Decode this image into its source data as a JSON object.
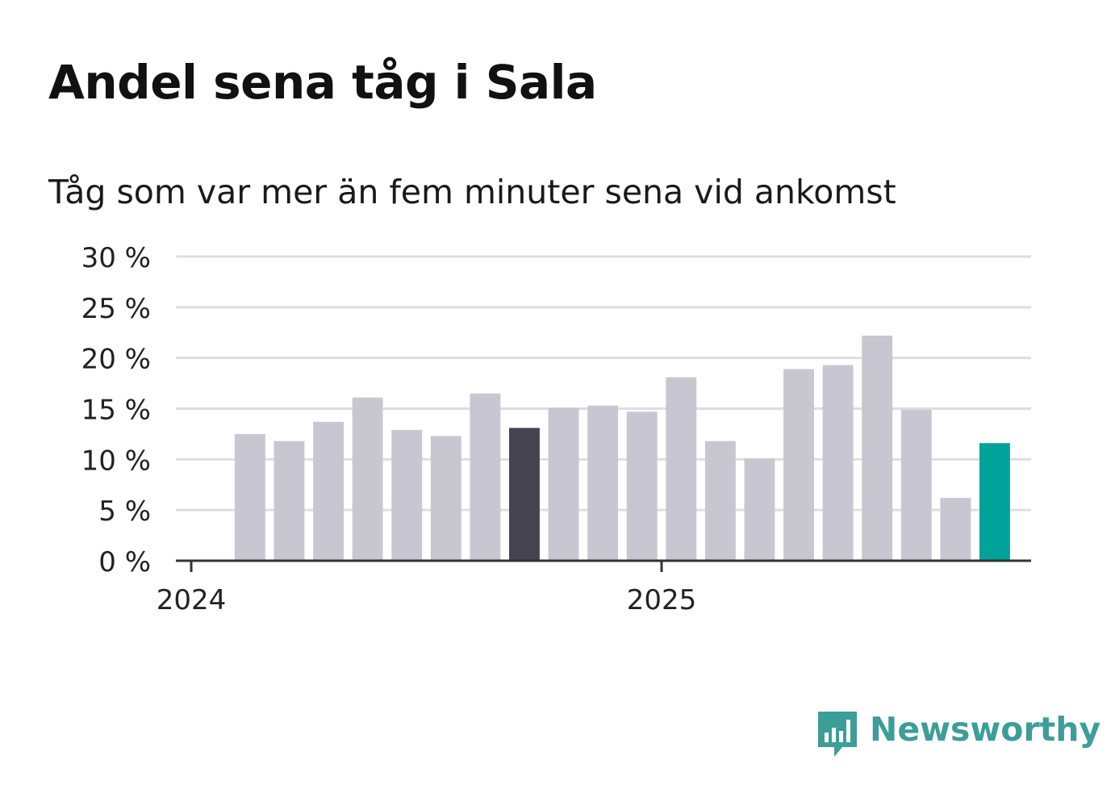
{
  "title": "Andel sena tåg i Sala",
  "subtitle": "Tåg som var mer än fem minuter sena vid ankomst",
  "brand": "Newsworthy",
  "colors": {
    "bar": "#c8c7d1",
    "highlight_dark": "#44434f",
    "highlight_accent": "#00a39a",
    "grid": "#dedede",
    "axis": "#333333",
    "brand": "#3d9d98"
  },
  "chart_data": {
    "type": "bar",
    "title": "Andel sena tåg i Sala",
    "subtitle": "Tåg som var mer än fem minuter sena vid ankomst",
    "categories": [
      "2024-02",
      "2024-03",
      "2024-04",
      "2024-05",
      "2024-06",
      "2024-07",
      "2024-08",
      "2024-09",
      "2024-10",
      "2024-11",
      "2024-12",
      "2025-01",
      "2025-02",
      "2025-03",
      "2025-04",
      "2025-05",
      "2025-06",
      "2025-07",
      "2025-08",
      "2025-09"
    ],
    "values": [
      12.5,
      11.8,
      13.7,
      16.1,
      12.9,
      12.3,
      16.5,
      13.1,
      15.1,
      15.3,
      14.7,
      18.1,
      11.8,
      10.1,
      18.9,
      19.3,
      22.2,
      14.9,
      6.2,
      11.6
    ],
    "highlight": {
      "2024-09": "highlight_dark",
      "2025-09": "highlight_accent"
    },
    "x_ticks": [
      {
        "date": "2024-01",
        "label": "2024"
      },
      {
        "date": "2025-01",
        "label": "2025"
      }
    ],
    "y_ticks": [
      0,
      5,
      10,
      15,
      20,
      25,
      30
    ],
    "y_tick_labels": [
      "0 %",
      "5 %",
      "10 %",
      "15 %",
      "20 %",
      "25 %",
      "30 %"
    ],
    "ylim": [
      0,
      30
    ],
    "xlabel": "",
    "ylabel": "",
    "grid": true,
    "legend": "none"
  }
}
